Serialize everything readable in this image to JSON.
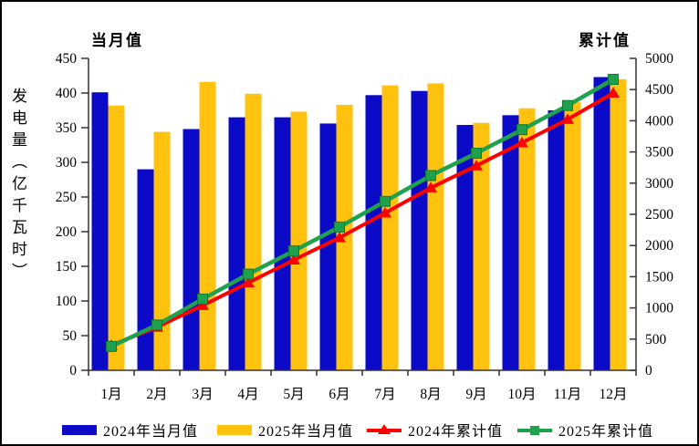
{
  "window": {
    "background": "#FFFFFF",
    "border_color": "#000000"
  },
  "figure": {
    "left_header": "当月值",
    "right_header": "累计值",
    "y_axis_title": "发电量（亿千瓦时）"
  },
  "legend": [
    {
      "label": "2024年当月值",
      "swatch": "bar",
      "color": "#0B0BC7"
    },
    {
      "label": "2025年当月值",
      "swatch": "bar",
      "color": "#FFC20E"
    },
    {
      "label": "2024年累计值",
      "swatch": "line-triangle",
      "color": "#FF0000"
    },
    {
      "label": "2025年累计值",
      "swatch": "line-square",
      "color": "#1FA14D"
    }
  ],
  "chart_data": {
    "type": "combo bar+line, dual y-axis",
    "title": "",
    "categories": [
      "1月",
      "2月",
      "3月",
      "4月",
      "5月",
      "6月",
      "7月",
      "8月",
      "9月",
      "10月",
      "11月",
      "12月"
    ],
    "series": [
      {
        "name": "2024年当月值",
        "type": "bar",
        "axis": "left",
        "color": "#0B0BC7",
        "values": [
          401,
          290,
          348,
          365,
          365,
          356,
          397,
          403,
          354,
          368,
          375,
          423
        ]
      },
      {
        "name": "2025年当月值",
        "type": "bar",
        "axis": "left",
        "color": "#FFC20E",
        "values": [
          382,
          344,
          416,
          399,
          373,
          383,
          411,
          414,
          357,
          378,
          387,
          420
        ]
      },
      {
        "name": "2024年累计值",
        "type": "line",
        "axis": "right",
        "color": "#FF0000",
        "marker": "triangle",
        "values": [
          401,
          691,
          1039,
          1404,
          1769,
          2125,
          2522,
          2925,
          3279,
          3647,
          4022,
          4445
        ]
      },
      {
        "name": "2025年累计值",
        "type": "line",
        "axis": "right",
        "color": "#1FA14D",
        "marker": "square",
        "marker_edge": "#0C7A36",
        "values": [
          382,
          726,
          1142,
          1541,
          1914,
          2297,
          2708,
          3122,
          3479,
          3857,
          4244,
          4664
        ]
      }
    ],
    "left_axis": {
      "header": "当月值",
      "min": 0,
      "max": 450,
      "step": 50,
      "ticks": [
        450,
        400,
        350,
        300,
        250,
        200,
        150,
        100,
        50,
        0
      ]
    },
    "right_axis": {
      "header": "累计值",
      "min": 0,
      "max": 5000,
      "step": 500,
      "ticks": [
        5000,
        4500,
        4000,
        3500,
        3000,
        2500,
        2000,
        1500,
        1000,
        500,
        0
      ]
    },
    "grid": false,
    "legend_position": "bottom",
    "axis_color": "#333333",
    "text_color": "#000000"
  }
}
